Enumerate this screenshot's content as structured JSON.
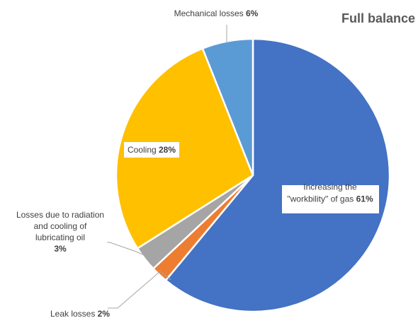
{
  "chart_data": {
    "type": "pie",
    "title": "Full balance",
    "slices": [
      {
        "label_lines": [
          "Increasing the",
          "\"workbility\" of gas"
        ],
        "value": 61,
        "pct_label": "61%",
        "color": "#4472c4"
      },
      {
        "label_lines": [
          "Leak losses"
        ],
        "value": 2,
        "pct_label": "2%",
        "color": "#ed7d31"
      },
      {
        "label_lines": [
          "Losses due to radiation",
          "and cooling of",
          "lubricating oil"
        ],
        "value": 3,
        "pct_label": "3%",
        "color": "#a5a5a5"
      },
      {
        "label_lines": [
          "Cooling"
        ],
        "value": 28,
        "pct_label": "28%",
        "color": "#ffc000"
      },
      {
        "label_lines": [
          "Mechanical losses"
        ],
        "value": 6,
        "pct_label": "6%",
        "color": "#5b9bd5"
      }
    ]
  }
}
